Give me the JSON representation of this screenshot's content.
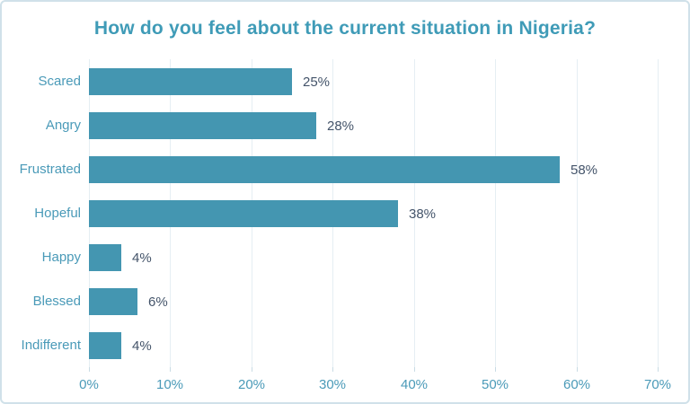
{
  "chart_data": {
    "type": "bar",
    "orientation": "horizontal",
    "title": "How do you feel about the current situation in Nigeria?",
    "categories": [
      "Scared",
      "Angry",
      "Frustrated",
      "Hopeful",
      "Happy",
      "Blessed",
      "Indifferent"
    ],
    "values": [
      25,
      28,
      58,
      38,
      4,
      6,
      4
    ],
    "data_labels": [
      "25%",
      "28%",
      "58%",
      "38%",
      "4%",
      "6%",
      "4%"
    ],
    "x_tick_labels": [
      "0%",
      "10%",
      "20%",
      "30%",
      "40%",
      "50%",
      "60%",
      "70%"
    ],
    "x_tick_values": [
      0,
      10,
      20,
      30,
      40,
      50,
      60,
      70
    ],
    "xlim": [
      0,
      70
    ],
    "xlabel": "",
    "ylabel": "",
    "grid": "vertical",
    "legend": "none",
    "colors": {
      "bar": "#4496b1",
      "title_text": "#3f9bb7",
      "axis_text": "#4a9ab8",
      "data_label_text": "#44546a",
      "gridline": "#e5eef3",
      "tick": "#c9dbe4",
      "border": "#d0e1e9",
      "background": "#ffffff"
    }
  }
}
